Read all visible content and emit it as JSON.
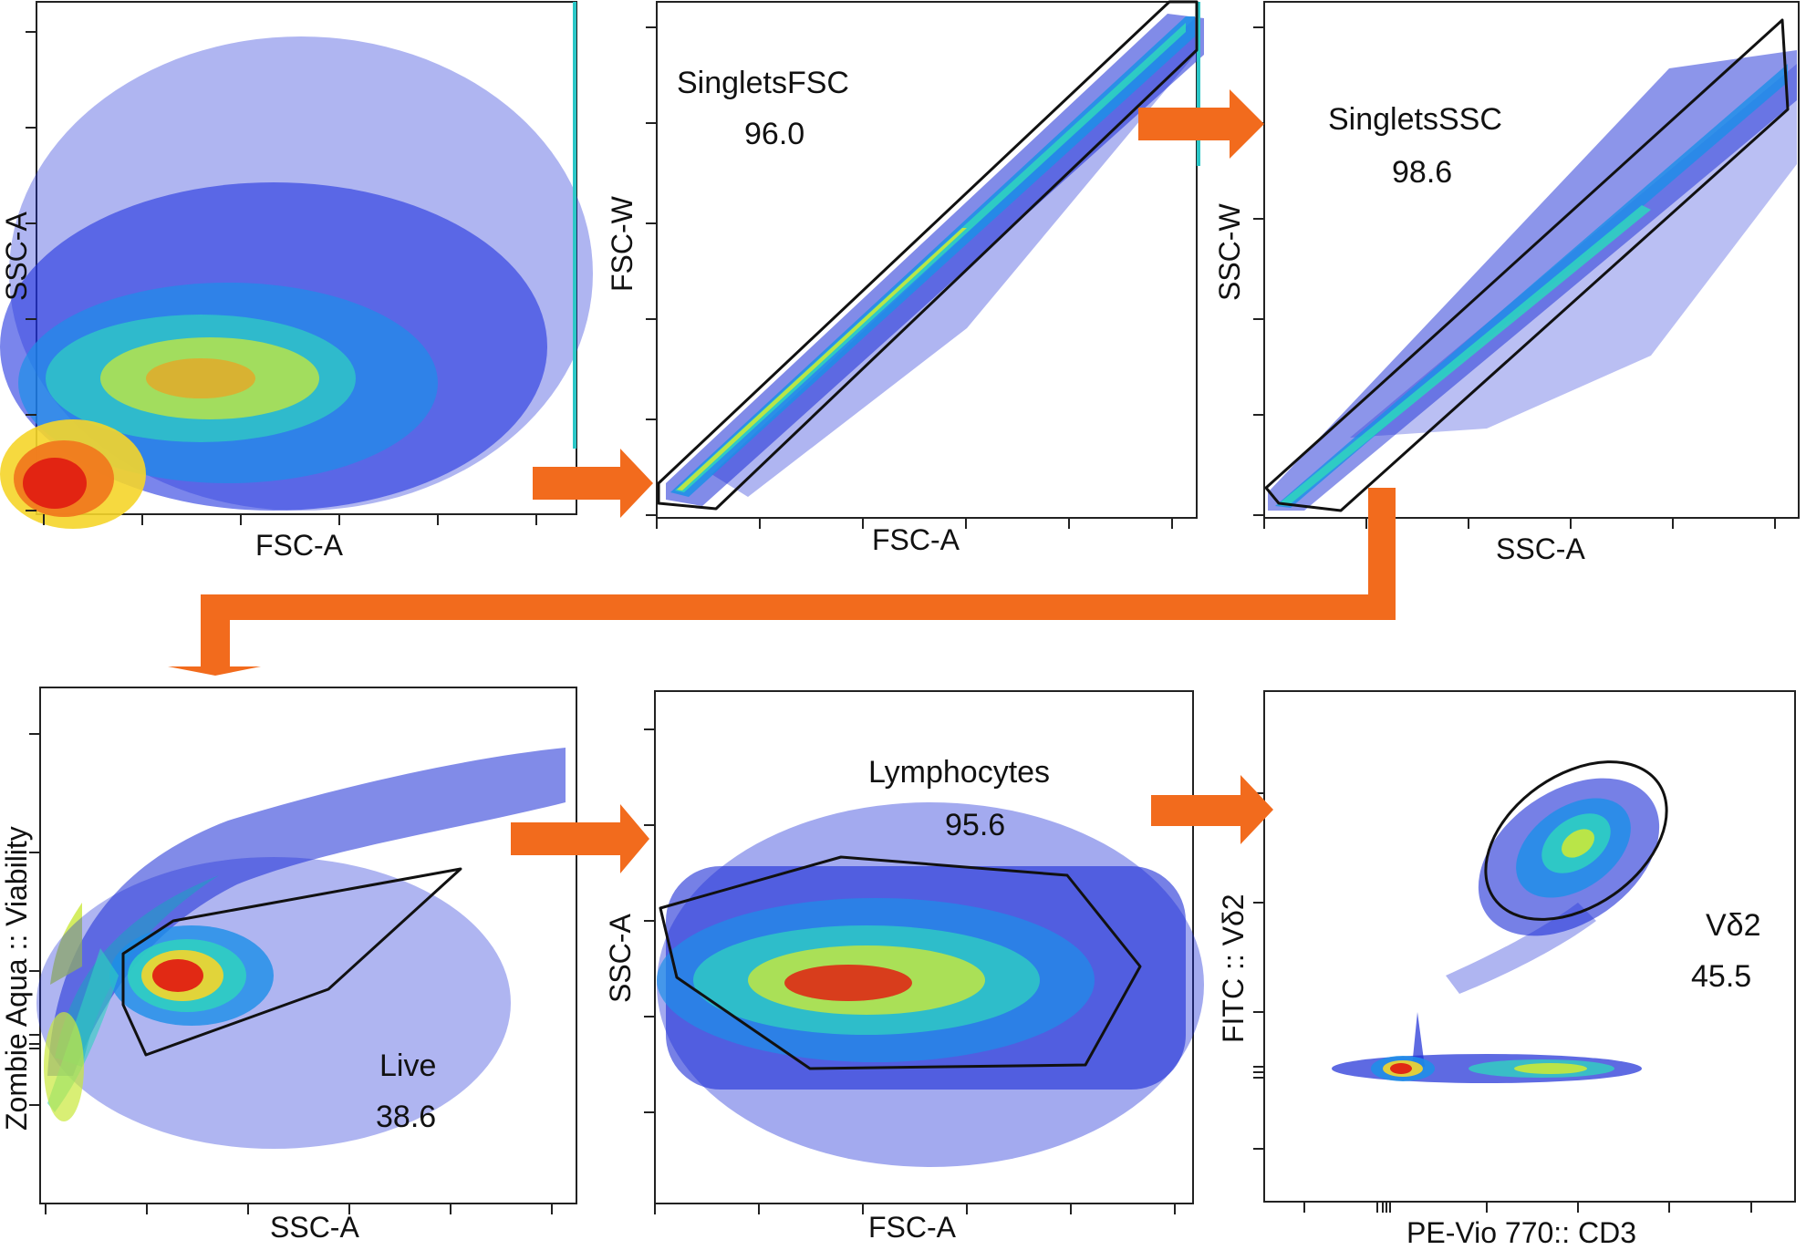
{
  "accent_color": "#f26b1d",
  "panels": [
    {
      "id": "p1",
      "xlabel": "FSC-A",
      "ylabel": "SSC-A",
      "gate": null
    },
    {
      "id": "p2",
      "xlabel": "FSC-A",
      "ylabel": "FSC-W",
      "gate": {
        "name": "SingletsFSC",
        "percent": "96.0"
      }
    },
    {
      "id": "p3",
      "xlabel": "SSC-A",
      "ylabel": "SSC-W",
      "gate": {
        "name": "SingletsSSC",
        "percent": "98.6"
      }
    },
    {
      "id": "p4",
      "xlabel": "SSC-A",
      "ylabel": "Zombie Aqua :: Viability",
      "gate": {
        "name": "Live",
        "percent": "38.6"
      }
    },
    {
      "id": "p5",
      "xlabel": "FSC-A",
      "ylabel": "SSC-A",
      "gate": {
        "name": "Lymphocytes",
        "percent": "95.6"
      }
    },
    {
      "id": "p6",
      "xlabel": "PE-Vio 770:: CD3",
      "ylabel": "FITC :: Vδ2",
      "gate": {
        "name": "Vδ2",
        "percent": "45.5"
      }
    }
  ],
  "chart_data": [
    {
      "type": "scatter",
      "plot_style": "density pseudocolor",
      "xlabel": "FSC-A",
      "ylabel": "SSC-A",
      "x_scale": "linear",
      "y_scale": "linear",
      "gates": []
    },
    {
      "type": "scatter",
      "plot_style": "density pseudocolor",
      "xlabel": "FSC-A",
      "ylabel": "FSC-W",
      "x_scale": "linear",
      "y_scale": "linear",
      "gates": [
        {
          "name": "SingletsFSC",
          "percent": 96.0
        }
      ]
    },
    {
      "type": "scatter",
      "plot_style": "density pseudocolor",
      "xlabel": "SSC-A",
      "ylabel": "SSC-W",
      "x_scale": "linear",
      "y_scale": "linear",
      "gates": [
        {
          "name": "SingletsSSC",
          "percent": 98.6
        }
      ]
    },
    {
      "type": "scatter",
      "plot_style": "density pseudocolor",
      "xlabel": "SSC-A",
      "ylabel": "Zombie Aqua :: Viability",
      "x_scale": "linear",
      "y_scale": "biexponential",
      "gates": [
        {
          "name": "Live",
          "percent": 38.6
        }
      ]
    },
    {
      "type": "scatter",
      "plot_style": "density pseudocolor",
      "xlabel": "FSC-A",
      "ylabel": "SSC-A",
      "x_scale": "linear",
      "y_scale": "linear",
      "gates": [
        {
          "name": "Lymphocytes",
          "percent": 95.6
        }
      ]
    },
    {
      "type": "scatter",
      "plot_style": "density pseudocolor",
      "xlabel": "PE-Vio 770:: CD3",
      "ylabel": "FITC :: Vδ2",
      "x_scale": "biexponential",
      "y_scale": "biexponential",
      "gates": [
        {
          "name": "Vδ2",
          "percent": 45.5
        }
      ]
    }
  ]
}
